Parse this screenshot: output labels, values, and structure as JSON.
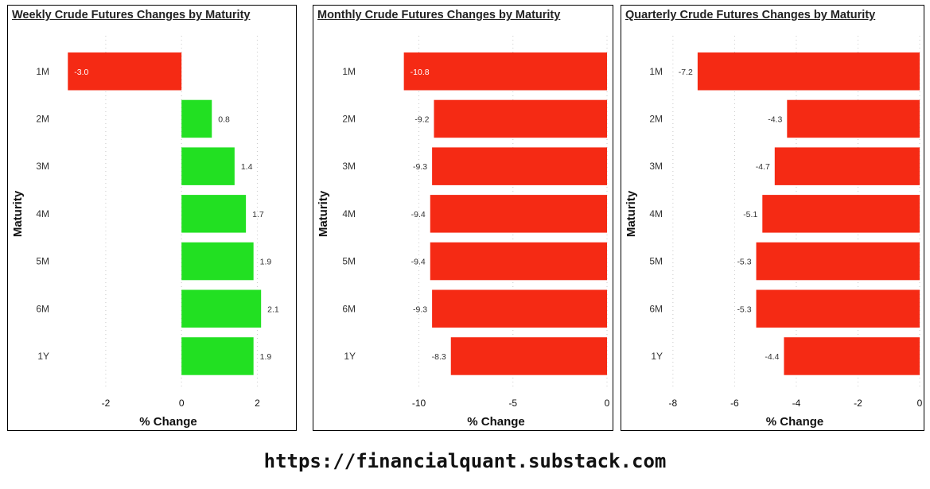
{
  "footer": {
    "url": "https://financialquant.substack.com"
  },
  "colors": {
    "positive": "#22e022",
    "negative": "#f52a14",
    "grid": "#c8c8c8",
    "text": "#333333"
  },
  "chart_data": [
    {
      "id": "weekly",
      "type": "bar",
      "orientation": "horizontal",
      "title": "Weekly Crude Futures Changes by Maturity",
      "xlabel": "% Change",
      "ylabel": "Maturity",
      "categories": [
        "1M",
        "2M",
        "3M",
        "4M",
        "5M",
        "6M",
        "1Y"
      ],
      "values": [
        -3.0,
        0.8,
        1.4,
        1.7,
        1.9,
        2.1,
        1.9
      ],
      "value_labels": [
        "-3.0",
        "0.8",
        "1.4",
        "1.7",
        "1.9",
        "2.1",
        "1.9"
      ],
      "xlim": [
        -3.3,
        2.6
      ],
      "xticks": [
        -2,
        0,
        2
      ],
      "xtick_labels": [
        "-2",
        "0",
        "2"
      ],
      "grid": "vertical-dotted"
    },
    {
      "id": "monthly",
      "type": "bar",
      "orientation": "horizontal",
      "title": "Monthly Crude Futures Changes by Maturity",
      "xlabel": "% Change",
      "ylabel": "Maturity",
      "categories": [
        "1M",
        "2M",
        "3M",
        "4M",
        "5M",
        "6M",
        "1Y"
      ],
      "values": [
        -10.8,
        -9.2,
        -9.3,
        -9.4,
        -9.4,
        -9.3,
        -8.3
      ],
      "value_labels": [
        "-10.8",
        "-9.2",
        "-9.3",
        "-9.4",
        "-9.4",
        "-9.3",
        "-8.3"
      ],
      "xlim": [
        -11.8,
        0
      ],
      "xticks": [
        -10,
        -5,
        0
      ],
      "xtick_labels": [
        "-10",
        "-5",
        "0"
      ],
      "grid": "vertical-dotted"
    },
    {
      "id": "quarterly",
      "type": "bar",
      "orientation": "horizontal",
      "title": "Quarterly Crude Futures Changes by Maturity",
      "xlabel": "% Change",
      "ylabel": "Maturity",
      "categories": [
        "1M",
        "2M",
        "3M",
        "4M",
        "5M",
        "6M",
        "1Y"
      ],
      "values": [
        -7.2,
        -4.3,
        -4.7,
        -5.1,
        -5.3,
        -5.3,
        -4.4
      ],
      "value_labels": [
        "-7.2",
        "-4.3",
        "-4.7",
        "-5.1",
        "-5.3",
        "-5.3",
        "-4.4"
      ],
      "xlim": [
        -8.1,
        0
      ],
      "xticks": [
        -8,
        -6,
        -4,
        -2,
        0
      ],
      "xtick_labels": [
        "-8",
        "-6",
        "-4",
        "-2",
        "0"
      ],
      "grid": "vertical-dotted"
    }
  ]
}
